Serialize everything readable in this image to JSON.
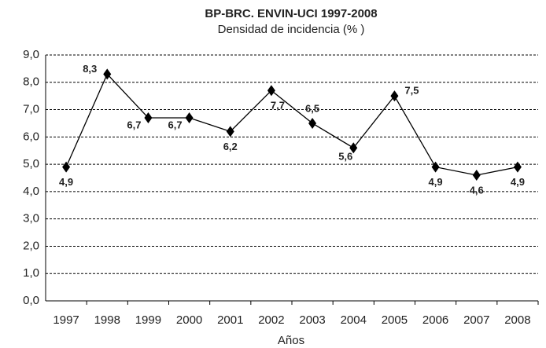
{
  "chart_data": {
    "type": "line",
    "title": "BP-BRC. ENVIN-UCI 1997-2008",
    "subtitle": "Densidad de incidencia (% )",
    "x_label": "Años",
    "categories": [
      "1997",
      "1998",
      "1999",
      "2000",
      "2001",
      "2002",
      "2003",
      "2004",
      "2005",
      "2006",
      "2007",
      "2008"
    ],
    "series": [
      {
        "name": "BP-BRC",
        "color": "#000000",
        "values": [
          4.9,
          8.3,
          6.7,
          6.7,
          6.2,
          7.7,
          6.5,
          5.6,
          7.5,
          4.9,
          4.6,
          4.9
        ],
        "value_labels": [
          "4,9",
          "8,3",
          "6,7",
          "6,7",
          "6,2",
          "7,7",
          "6,5",
          "5,6",
          "7,5",
          "4,9",
          "4,6",
          "4,9"
        ]
      }
    ],
    "ylim": [
      0,
      9
    ],
    "yticks": [
      {
        "value": 0,
        "label": "0,0"
      },
      {
        "value": 1,
        "label": "1,0"
      },
      {
        "value": 2,
        "label": "2,0"
      },
      {
        "value": 3,
        "label": "3,0"
      },
      {
        "value": 4,
        "label": "4,0"
      },
      {
        "value": 5,
        "label": "5,0"
      },
      {
        "value": 6,
        "label": "6,0"
      },
      {
        "value": 7,
        "label": "7,0"
      },
      {
        "value": 8,
        "label": "8,0"
      },
      {
        "value": 9,
        "label": "9,0"
      }
    ],
    "grid": true
  }
}
